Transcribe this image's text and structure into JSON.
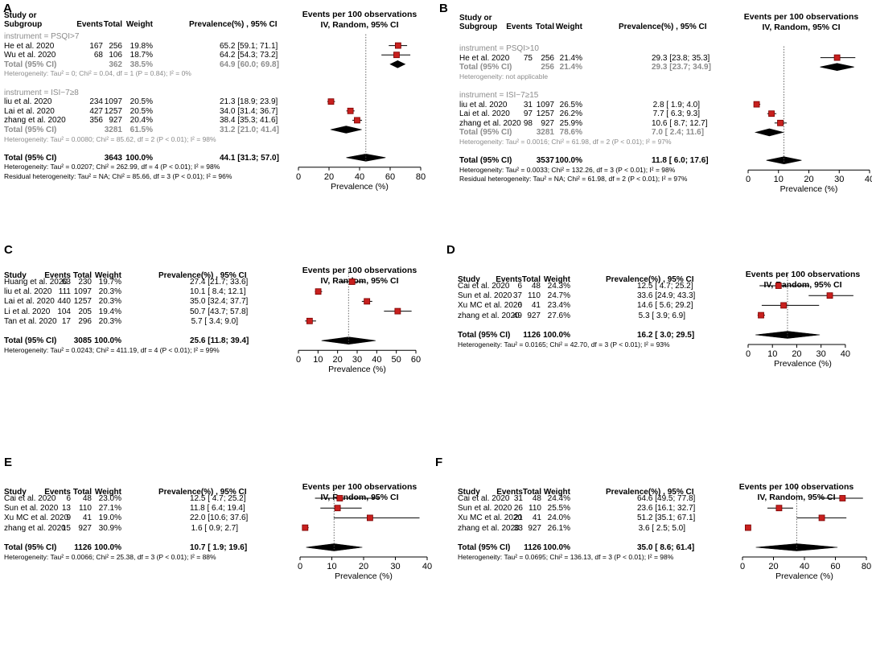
{
  "chart_data": [
    {
      "type": "forest",
      "panel": "A",
      "headers": {
        "study": "Study or",
        "study2": "Subgroup",
        "events": "Events",
        "total": "Total",
        "weight": "Weight",
        "ci": "Prevalence(%) , 95% CI"
      },
      "plot_title": "Events per 100 observations",
      "plot_subtitle": "IV, Random, 95% CI",
      "xlabel": "Prevalence (%)",
      "xlim": [
        0,
        80
      ],
      "xticks": [
        "0",
        "20",
        "40",
        "60",
        "80"
      ],
      "overall_line": 44.1,
      "rows": [
        {
          "kind": "group",
          "label": "instrument = PSQI>7"
        },
        {
          "kind": "study",
          "study": "He et al. 2020",
          "events": "167",
          "total": "256",
          "weight": "19.8%",
          "ci": "65.2 [59.1; 71.1]",
          "est": 65.2,
          "lo": 59.1,
          "hi": 71.1
        },
        {
          "kind": "study",
          "study": "Wu et al. 2020",
          "events": "68",
          "total": "106",
          "weight": "18.7%",
          "ci": "64.2 [54.3; 73.2]",
          "est": 64.2,
          "lo": 54.3,
          "hi": 73.2
        },
        {
          "kind": "subtotal",
          "study": "Total (95% CI)",
          "events": "",
          "total": "362",
          "weight": "38.5%",
          "ci": "64.9 [60.0; 69.8]",
          "est": 64.9,
          "lo": 60.0,
          "hi": 69.8
        },
        {
          "kind": "het",
          "label": "Heterogeneity: Tau² = 0; Chi² = 0.04, df = 1 (P = 0.84); I² = 0%"
        },
        {
          "kind": "blank"
        },
        {
          "kind": "group",
          "label": "instrument = ISI−7≥8"
        },
        {
          "kind": "study",
          "study": "liu et al. 2020",
          "events": "234",
          "total": "1097",
          "weight": "20.5%",
          "ci": "21.3 [18.9; 23.9]",
          "est": 21.3,
          "lo": 18.9,
          "hi": 23.9
        },
        {
          "kind": "study",
          "study": "Lai et al. 2020",
          "events": "427",
          "total": "1257",
          "weight": "20.5%",
          "ci": "34.0 [31.4; 36.7]",
          "est": 34.0,
          "lo": 31.4,
          "hi": 36.7
        },
        {
          "kind": "study",
          "study": "zhang et al. 2020",
          "events": "356",
          "total": "927",
          "weight": "20.4%",
          "ci": "38.4 [35.3; 41.6]",
          "est": 38.4,
          "lo": 35.3,
          "hi": 41.6
        },
        {
          "kind": "subtotal",
          "study": "Total (95% CI)",
          "events": "",
          "total": "3281",
          "weight": "61.5%",
          "ci": "31.2 [21.0; 41.4]",
          "est": 31.2,
          "lo": 21.0,
          "hi": 41.4
        },
        {
          "kind": "het",
          "label": "Heterogeneity: Tau² = 0.0080; Chi² = 85.62, df = 2 (P < 0.01); I² = 98%"
        },
        {
          "kind": "blank"
        },
        {
          "kind": "total",
          "study": "Total (95% CI)",
          "events": "",
          "total": "3643",
          "weight": "100.0%",
          "ci": "44.1 [31.3; 57.0]",
          "est": 44.1,
          "lo": 31.3,
          "hi": 57.0
        },
        {
          "kind": "note",
          "label": "Heterogeneity: Tau² = 0.0207; Chi² = 262.99, df = 4 (P < 0.01); I² = 98%"
        },
        {
          "kind": "note",
          "label": "Residual heterogeneity: Tau² = NA; Chi² = 85.66, df = 3 (P < 0.01); I² = 96%"
        }
      ]
    },
    {
      "type": "forest",
      "panel": "B",
      "headers": {
        "study": "Study or",
        "study2": "Subgroup",
        "events": "Events",
        "total": "Total",
        "weight": "Weight",
        "ci": "Prevalence(%) , 95% CI"
      },
      "plot_title": "Events per 100 observations",
      "plot_subtitle": "IV, Random, 95% CI",
      "xlabel": "Prevalence (%)",
      "xlim": [
        0,
        40
      ],
      "xticks": [
        "0",
        "10",
        "20",
        "30",
        "40"
      ],
      "overall_line": 11.8,
      "rows": [
        {
          "kind": "group",
          "label": "instrument = PSQI>10"
        },
        {
          "kind": "study",
          "study": "He et al. 2020",
          "events": "75",
          "total": "256",
          "weight": "21.4%",
          "ci": "29.3 [23.8; 35.3]",
          "est": 29.3,
          "lo": 23.8,
          "hi": 35.3
        },
        {
          "kind": "subtotal",
          "study": "Total (95% CI)",
          "events": "",
          "total": "256",
          "weight": "21.4%",
          "ci": "29.3 [23.7; 34.9]",
          "est": 29.3,
          "lo": 23.7,
          "hi": 34.9
        },
        {
          "kind": "het",
          "label": "Heterogeneity: not applicable"
        },
        {
          "kind": "blank"
        },
        {
          "kind": "group",
          "label": "instrument = ISI−7≥15"
        },
        {
          "kind": "study",
          "study": "liu et al. 2020",
          "events": "31",
          "total": "1097",
          "weight": "26.5%",
          "ci": "2.8 [ 1.9; 4.0]",
          "est": 2.8,
          "lo": 1.9,
          "hi": 4.0
        },
        {
          "kind": "study",
          "study": "Lai et al. 2020",
          "events": "97",
          "total": "1257",
          "weight": "26.2%",
          "ci": "7.7 [ 6.3; 9.3]",
          "est": 7.7,
          "lo": 6.3,
          "hi": 9.3
        },
        {
          "kind": "study",
          "study": "zhang et al. 2020",
          "events": "98",
          "total": "927",
          "weight": "25.9%",
          "ci": "10.6 [ 8.7; 12.7]",
          "est": 10.6,
          "lo": 8.7,
          "hi": 12.7
        },
        {
          "kind": "subtotal",
          "study": "Total (95% CI)",
          "events": "",
          "total": "3281",
          "weight": "78.6%",
          "ci": "7.0 [ 2.4; 11.6]",
          "est": 7.0,
          "lo": 2.4,
          "hi": 11.6
        },
        {
          "kind": "het",
          "label": "Heterogeneity: Tau² = 0.0016; Chi² = 61.98, df = 2 (P < 0.01); I² = 97%"
        },
        {
          "kind": "blank"
        },
        {
          "kind": "total",
          "study": "Total (95% CI)",
          "events": "",
          "total": "3537",
          "weight": "100.0%",
          "ci": "11.8 [ 6.0; 17.6]",
          "est": 11.8,
          "lo": 6.0,
          "hi": 17.6
        },
        {
          "kind": "note",
          "label": "Heterogeneity: Tau² = 0.0033; Chi² = 132.26, df = 3 (P < 0.01); I² = 98%"
        },
        {
          "kind": "note",
          "label": "Residual heterogeneity: Tau² = NA; Chi² = 61.98, df = 2 (P < 0.01); I² = 97%"
        }
      ]
    },
    {
      "type": "forest",
      "panel": "C",
      "headers": {
        "study": "Study",
        "events": "Events",
        "total": "Total",
        "weight": "Weight",
        "ci": "Prevalence(%) , 95% CI"
      },
      "plot_title": "Events per 100 observations",
      "plot_subtitle": "IV, Random, 95% CI",
      "xlabel": "Prevalence (%)",
      "xlim": [
        0,
        60
      ],
      "xticks": [
        "0",
        "10",
        "20",
        "30",
        "40",
        "50",
        "60"
      ],
      "overall_line": 25.6,
      "rows": [
        {
          "kind": "study",
          "study": "Huang et al. 2020",
          "events": "63",
          "total": "230",
          "weight": "19.7%",
          "ci": "27.4 [21.7; 33.6]",
          "est": 27.4,
          "lo": 21.7,
          "hi": 33.6
        },
        {
          "kind": "study",
          "study": "liu et al. 2020",
          "events": "111",
          "total": "1097",
          "weight": "20.3%",
          "ci": "10.1 [ 8.4; 12.1]",
          "est": 10.1,
          "lo": 8.4,
          "hi": 12.1
        },
        {
          "kind": "study",
          "study": "Lai et al. 2020",
          "events": "440",
          "total": "1257",
          "weight": "20.3%",
          "ci": "35.0 [32.4; 37.7]",
          "est": 35.0,
          "lo": 32.4,
          "hi": 37.7
        },
        {
          "kind": "study",
          "study": "Li et al. 2020",
          "events": "104",
          "total": "205",
          "weight": "19.4%",
          "ci": "50.7 [43.7; 57.8]",
          "est": 50.7,
          "lo": 43.7,
          "hi": 57.8
        },
        {
          "kind": "study",
          "study": "Tan et al. 2020",
          "events": "17",
          "total": "296",
          "weight": "20.3%",
          "ci": "5.7 [ 3.4; 9.0]",
          "est": 5.7,
          "lo": 3.4,
          "hi": 9.0
        },
        {
          "kind": "blank"
        },
        {
          "kind": "total",
          "study": "Total (95% CI)",
          "events": "",
          "total": "3085",
          "weight": "100.0%",
          "ci": "25.6 [11.8; 39.4]",
          "est": 25.6,
          "lo": 11.8,
          "hi": 39.4
        },
        {
          "kind": "note",
          "label": "Heterogeneity: Tau² = 0.0243; Chi² = 411.19, df = 4 (P < 0.01); I² = 99%"
        }
      ]
    },
    {
      "type": "forest",
      "panel": "D",
      "headers": {
        "study": "Study",
        "events": "Events",
        "total": "Total",
        "weight": "Weight",
        "ci": "Prevalence(%) , 95% CI"
      },
      "plot_title": "Events per 100 observations",
      "plot_subtitle": "IV, Random, 95% CI",
      "xlabel": "Prevalence (%)",
      "xlim": [
        0,
        45
      ],
      "xticks": [
        "0",
        "10",
        "20",
        "30",
        "40"
      ],
      "overall_line": 16.2,
      "rows": [
        {
          "kind": "study",
          "study": "Cai et al. 2020",
          "events": "6",
          "total": "48",
          "weight": "24.3%",
          "ci": "12.5 [ 4.7; 25.2]",
          "est": 12.5,
          "lo": 4.7,
          "hi": 25.2
        },
        {
          "kind": "study",
          "study": "Sun et al. 2020",
          "events": "37",
          "total": "110",
          "weight": "24.7%",
          "ci": "33.6 [24.9; 43.3]",
          "est": 33.6,
          "lo": 24.9,
          "hi": 43.3
        },
        {
          "kind": "study",
          "study": "Xu MC et al. 2020",
          "events": "6",
          "total": "41",
          "weight": "23.4%",
          "ci": "14.6 [ 5.6; 29.2]",
          "est": 14.6,
          "lo": 5.6,
          "hi": 29.2
        },
        {
          "kind": "study",
          "study": "zhang et al. 2020",
          "events": "49",
          "total": "927",
          "weight": "27.6%",
          "ci": "5.3 [ 3.9; 6.9]",
          "est": 5.3,
          "lo": 3.9,
          "hi": 6.9
        },
        {
          "kind": "blank"
        },
        {
          "kind": "total",
          "study": "Total (95% CI)",
          "events": "",
          "total": "1126",
          "weight": "100.0%",
          "ci": "16.2 [ 3.0; 29.5]",
          "est": 16.2,
          "lo": 3.0,
          "hi": 29.5
        },
        {
          "kind": "note",
          "label": "Heterogeneity: Tau² = 0.0165; Chi² = 42.70, df = 3 (P < 0.01); I² = 93%"
        }
      ]
    },
    {
      "type": "forest",
      "panel": "E",
      "headers": {
        "study": "Study",
        "events": "Events",
        "total": "Total",
        "weight": "Weight",
        "ci": "Prevalence(%) , 95% CI"
      },
      "plot_title": "Events per 100 observations",
      "plot_subtitle": "IV, Random, 95% CI",
      "xlabel": "Prevalence (%)",
      "xlim": [
        0,
        40
      ],
      "xticks": [
        "0",
        "10",
        "20",
        "30",
        "40"
      ],
      "overall_line": 10.7,
      "rows": [
        {
          "kind": "study",
          "study": "Cai et al. 2020",
          "events": "6",
          "total": "48",
          "weight": "23.0%",
          "ci": "12.5 [ 4.7; 25.2]",
          "est": 12.5,
          "lo": 4.7,
          "hi": 25.2
        },
        {
          "kind": "study",
          "study": "Sun et al. 2020",
          "events": "13",
          "total": "110",
          "weight": "27.1%",
          "ci": "11.8 [ 6.4; 19.4]",
          "est": 11.8,
          "lo": 6.4,
          "hi": 19.4
        },
        {
          "kind": "study",
          "study": "Xu MC et al. 2020",
          "events": "9",
          "total": "41",
          "weight": "19.0%",
          "ci": "22.0 [10.6; 37.6]",
          "est": 22.0,
          "lo": 10.6,
          "hi": 37.6
        },
        {
          "kind": "study",
          "study": "zhang et al. 2020",
          "events": "15",
          "total": "927",
          "weight": "30.9%",
          "ci": "1.6 [ 0.9; 2.7]",
          "est": 1.6,
          "lo": 0.9,
          "hi": 2.7
        },
        {
          "kind": "blank"
        },
        {
          "kind": "total",
          "study": "Total (95% CI)",
          "events": "",
          "total": "1126",
          "weight": "100.0%",
          "ci": "10.7 [ 1.9; 19.6]",
          "est": 10.7,
          "lo": 1.9,
          "hi": 19.6
        },
        {
          "kind": "note",
          "label": "Heterogeneity: Tau² = 0.0066; Chi² = 25.38, df = 3 (P < 0.01); I² = 88%"
        }
      ]
    },
    {
      "type": "forest",
      "panel": "F",
      "headers": {
        "study": "Study",
        "events": "Events",
        "total": "Total",
        "weight": "Weight",
        "ci": "Prevalence(%) , 95% CI"
      },
      "plot_title": "Events per 100 observations",
      "plot_subtitle": "IV, Random, 95% CI",
      "xlabel": "Prevalence (%)",
      "xlim": [
        0,
        80
      ],
      "xticks": [
        "0",
        "20",
        "40",
        "60",
        "80"
      ],
      "overall_line": 35.0,
      "rows": [
        {
          "kind": "study",
          "study": "Cai et al. 2020",
          "events": "31",
          "total": "48",
          "weight": "24.4%",
          "ci": "64.6 [49.5; 77.8]",
          "est": 64.6,
          "lo": 49.5,
          "hi": 77.8
        },
        {
          "kind": "study",
          "study": "Sun et al. 2020",
          "events": "26",
          "total": "110",
          "weight": "25.5%",
          "ci": "23.6 [16.1; 32.7]",
          "est": 23.6,
          "lo": 16.1,
          "hi": 32.7
        },
        {
          "kind": "study",
          "study": "Xu MC et al. 2020",
          "events": "21",
          "total": "41",
          "weight": "24.0%",
          "ci": "51.2 [35.1; 67.1]",
          "est": 51.2,
          "lo": 35.1,
          "hi": 67.1
        },
        {
          "kind": "study",
          "study": "zhang et al. 2020",
          "events": "33",
          "total": "927",
          "weight": "26.1%",
          "ci": "3.6 [ 2.5; 5.0]",
          "est": 3.6,
          "lo": 2.5,
          "hi": 5.0
        },
        {
          "kind": "blank"
        },
        {
          "kind": "total",
          "study": "Total (95% CI)",
          "events": "",
          "total": "1126",
          "weight": "100.0%",
          "ci": "35.0 [ 8.6; 61.4]",
          "est": 35.0,
          "lo": 8.6,
          "hi": 61.4
        },
        {
          "kind": "note",
          "label": "Heterogeneity: Tau² = 0.0695; Chi² = 136.13, df = 3 (P < 0.01); I² = 98%"
        }
      ]
    }
  ]
}
